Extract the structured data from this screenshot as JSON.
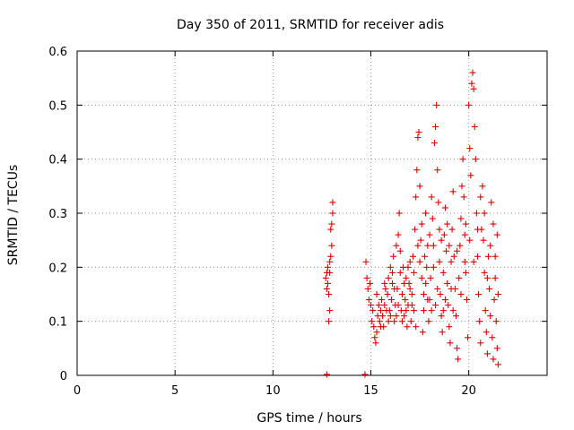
{
  "chart_data": {
    "type": "scatter",
    "title": "Day 350 of 2011, SRMTID for receiver adis",
    "xlabel": "GPS time / hours",
    "ylabel": "SRMTID / TECUs",
    "xlim": [
      0,
      24
    ],
    "ylim": [
      0,
      0.6
    ],
    "xticks": [
      0,
      5,
      10,
      15,
      20
    ],
    "xtick_labels": [
      "0",
      "5",
      "10",
      "15",
      "20"
    ],
    "yticks": [
      0,
      0.1,
      0.2,
      0.3,
      0.4,
      0.5,
      0.6
    ],
    "ytick_labels": [
      "0",
      "0.1",
      "0.2",
      "0.3",
      "0.4",
      "0.5",
      "0.6"
    ],
    "grid": true,
    "marker_color": "#e00000",
    "series": [
      {
        "name": "SRMTID",
        "marker": "+",
        "points": [
          [
            12.75,
            0.0
          ],
          [
            14.7,
            0.0
          ],
          [
            12.7,
            0.18
          ],
          [
            12.75,
            0.19
          ],
          [
            12.8,
            0.2
          ],
          [
            12.8,
            0.17
          ],
          [
            12.85,
            0.15
          ],
          [
            12.85,
            0.1
          ],
          [
            12.9,
            0.12
          ],
          [
            12.9,
            0.21
          ],
          [
            12.95,
            0.22
          ],
          [
            13.0,
            0.24
          ],
          [
            13.0,
            0.28
          ],
          [
            13.05,
            0.3
          ],
          [
            13.05,
            0.32
          ],
          [
            12.95,
            0.27
          ],
          [
            12.75,
            0.16
          ],
          [
            12.9,
            0.19
          ],
          [
            14.75,
            0.21
          ],
          [
            14.8,
            0.18
          ],
          [
            14.85,
            0.16
          ],
          [
            14.9,
            0.14
          ],
          [
            14.95,
            0.17
          ],
          [
            15.0,
            0.13
          ],
          [
            15.05,
            0.1
          ],
          [
            15.1,
            0.12
          ],
          [
            15.15,
            0.09
          ],
          [
            15.2,
            0.07
          ],
          [
            15.25,
            0.06
          ],
          [
            15.3,
            0.08
          ],
          [
            15.35,
            0.11
          ],
          [
            15.4,
            0.13
          ],
          [
            15.45,
            0.1
          ],
          [
            15.5,
            0.12
          ],
          [
            15.55,
            0.14
          ],
          [
            15.6,
            0.11
          ],
          [
            15.65,
            0.09
          ],
          [
            15.7,
            0.13
          ],
          [
            15.75,
            0.16
          ],
          [
            15.8,
            0.12
          ],
          [
            15.85,
            0.15
          ],
          [
            15.9,
            0.18
          ],
          [
            15.95,
            0.12
          ],
          [
            16.0,
            0.2
          ],
          [
            16.05,
            0.14
          ],
          [
            16.1,
            0.17
          ],
          [
            16.15,
            0.22
          ],
          [
            16.2,
            0.1
          ],
          [
            16.25,
            0.13
          ],
          [
            16.3,
            0.24
          ],
          [
            16.35,
            0.16
          ],
          [
            16.4,
            0.26
          ],
          [
            16.45,
            0.3
          ],
          [
            16.5,
            0.19
          ],
          [
            16.55,
            0.12
          ],
          [
            16.6,
            0.15
          ],
          [
            16.65,
            0.2
          ],
          [
            16.7,
            0.11
          ],
          [
            16.75,
            0.14
          ],
          [
            16.8,
            0.18
          ],
          [
            16.85,
            0.09
          ],
          [
            16.9,
            0.13
          ],
          [
            16.95,
            0.17
          ],
          [
            17.0,
            0.21
          ],
          [
            17.05,
            0.1
          ],
          [
            17.1,
            0.15
          ],
          [
            17.15,
            0.22
          ],
          [
            17.2,
            0.12
          ],
          [
            17.25,
            0.27
          ],
          [
            17.3,
            0.33
          ],
          [
            17.35,
            0.38
          ],
          [
            17.4,
            0.44
          ],
          [
            17.45,
            0.45
          ],
          [
            17.5,
            0.35
          ],
          [
            17.55,
            0.25
          ],
          [
            17.6,
            0.18
          ],
          [
            17.65,
            0.08
          ],
          [
            17.7,
            0.15
          ],
          [
            17.75,
            0.22
          ],
          [
            17.8,
            0.3
          ],
          [
            17.85,
            0.2
          ],
          [
            17.9,
            0.14
          ],
          [
            17.95,
            0.1
          ],
          [
            18.0,
            0.26
          ],
          [
            18.05,
            0.18
          ],
          [
            18.1,
            0.12
          ],
          [
            18.15,
            0.29
          ],
          [
            18.2,
            0.24
          ],
          [
            18.25,
            0.43
          ],
          [
            18.3,
            0.46
          ],
          [
            18.35,
            0.5
          ],
          [
            18.4,
            0.38
          ],
          [
            18.45,
            0.32
          ],
          [
            18.5,
            0.21
          ],
          [
            18.55,
            0.15
          ],
          [
            18.6,
            0.11
          ],
          [
            18.65,
            0.08
          ],
          [
            18.7,
            0.19
          ],
          [
            18.75,
            0.26
          ],
          [
            18.8,
            0.31
          ],
          [
            18.85,
            0.23
          ],
          [
            18.9,
            0.17
          ],
          [
            18.95,
            0.13
          ],
          [
            19.0,
            0.09
          ],
          [
            19.05,
            0.06
          ],
          [
            19.1,
            0.21
          ],
          [
            19.15,
            0.27
          ],
          [
            19.2,
            0.34
          ],
          [
            19.25,
            0.22
          ],
          [
            19.3,
            0.16
          ],
          [
            19.35,
            0.11
          ],
          [
            19.4,
            0.05
          ],
          [
            19.45,
            0.03
          ],
          [
            19.5,
            0.18
          ],
          [
            19.55,
            0.24
          ],
          [
            19.6,
            0.29
          ],
          [
            19.65,
            0.35
          ],
          [
            19.7,
            0.4
          ],
          [
            19.75,
            0.33
          ],
          [
            19.8,
            0.26
          ],
          [
            19.85,
            0.19
          ],
          [
            19.9,
            0.14
          ],
          [
            19.95,
            0.07
          ],
          [
            20.0,
            0.5
          ],
          [
            20.05,
            0.42
          ],
          [
            20.1,
            0.37
          ],
          [
            20.15,
            0.54
          ],
          [
            20.2,
            0.56
          ],
          [
            20.25,
            0.53
          ],
          [
            20.3,
            0.46
          ],
          [
            20.35,
            0.4
          ],
          [
            20.4,
            0.3
          ],
          [
            20.45,
            0.22
          ],
          [
            20.5,
            0.15
          ],
          [
            20.55,
            0.1
          ],
          [
            20.6,
            0.06
          ],
          [
            20.65,
            0.27
          ],
          [
            20.7,
            0.35
          ],
          [
            20.75,
            0.25
          ],
          [
            20.8,
            0.19
          ],
          [
            20.85,
            0.12
          ],
          [
            20.9,
            0.08
          ],
          [
            20.95,
            0.04
          ],
          [
            21.0,
            0.22
          ],
          [
            21.05,
            0.16
          ],
          [
            21.1,
            0.11
          ],
          [
            21.15,
            0.32
          ],
          [
            21.2,
            0.07
          ],
          [
            21.25,
            0.03
          ],
          [
            21.3,
            0.14
          ],
          [
            21.35,
            0.18
          ],
          [
            21.4,
            0.1
          ],
          [
            21.45,
            0.05
          ],
          [
            21.5,
            0.02
          ],
          [
            21.5,
            0.15
          ],
          [
            21.45,
            0.26
          ],
          [
            21.35,
            0.22
          ],
          [
            21.25,
            0.28
          ],
          [
            21.1,
            0.24
          ],
          [
            20.95,
            0.18
          ],
          [
            20.8,
            0.3
          ],
          [
            20.6,
            0.33
          ],
          [
            20.45,
            0.27
          ],
          [
            20.25,
            0.21
          ],
          [
            20.05,
            0.25
          ],
          [
            19.85,
            0.28
          ],
          [
            16.0,
            0.11
          ],
          [
            16.2,
            0.16
          ],
          [
            16.4,
            0.13
          ],
          [
            16.6,
            0.1
          ],
          [
            16.8,
            0.12
          ],
          [
            17.0,
            0.16
          ],
          [
            17.2,
            0.19
          ],
          [
            17.4,
            0.24
          ],
          [
            17.6,
            0.28
          ],
          [
            17.8,
            0.17
          ],
          [
            18.0,
            0.14
          ],
          [
            18.2,
            0.2
          ],
          [
            18.4,
            0.16
          ],
          [
            18.6,
            0.25
          ],
          [
            18.8,
            0.14
          ],
          [
            19.0,
            0.24
          ],
          [
            19.2,
            0.12
          ],
          [
            19.4,
            0.23
          ],
          [
            19.6,
            0.15
          ],
          [
            19.8,
            0.21
          ],
          [
            15.3,
            0.15
          ],
          [
            15.5,
            0.09
          ],
          [
            15.7,
            0.17
          ],
          [
            15.9,
            0.1
          ],
          [
            16.1,
            0.19
          ],
          [
            16.3,
            0.11
          ],
          [
            16.5,
            0.23
          ],
          [
            16.7,
            0.17
          ],
          [
            16.9,
            0.2
          ],
          [
            17.1,
            0.13
          ],
          [
            17.3,
            0.09
          ],
          [
            17.5,
            0.21
          ],
          [
            17.7,
            0.12
          ],
          [
            17.9,
            0.24
          ],
          [
            18.1,
            0.33
          ],
          [
            18.3,
            0.13
          ],
          [
            18.5,
            0.27
          ],
          [
            18.7,
            0.12
          ],
          [
            18.9,
            0.28
          ],
          [
            19.1,
            0.16
          ]
        ]
      }
    ]
  }
}
